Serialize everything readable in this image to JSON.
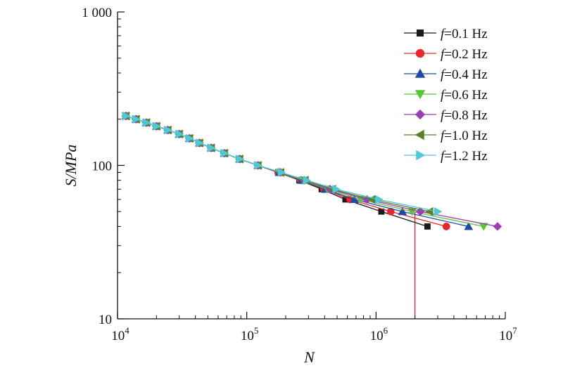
{
  "chart_data": {
    "type": "line",
    "title": "",
    "xlabel": "N",
    "ylabel": "S/MPa",
    "x_scale": "log",
    "y_scale": "log",
    "xlim": [
      10000,
      10000000
    ],
    "ylim": [
      10,
      1000
    ],
    "x_ticks": [
      {
        "value": 10000,
        "base": "10",
        "exp": "4"
      },
      {
        "value": 100000,
        "base": "10",
        "exp": "5"
      },
      {
        "value": 1000000,
        "base": "10",
        "exp": "6"
      },
      {
        "value": 10000000,
        "base": "10",
        "exp": "7"
      }
    ],
    "y_ticks": [
      {
        "value": 10,
        "label": "10"
      },
      {
        "value": 100,
        "label": "100"
      },
      {
        "value": 1000,
        "label": "1 000"
      }
    ],
    "grid": false,
    "legend_position": "top-right",
    "reference_line": {
      "x": 2000000,
      "y_from": 10,
      "y_to": 50,
      "color": "#d62728"
    },
    "series": [
      {
        "name": "f=0.1 Hz",
        "prefix": "f",
        "suffix": "=0.1 Hz",
        "color": "#1a1a1a",
        "marker": "square",
        "points": [
          [
            11600,
            210
          ],
          [
            13900,
            200
          ],
          [
            16700,
            190
          ],
          [
            20000,
            180
          ],
          [
            24500,
            170
          ],
          [
            30000,
            160
          ],
          [
            36000,
            150
          ],
          [
            43000,
            140
          ],
          [
            53000,
            130
          ],
          [
            67000,
            120
          ],
          [
            88000,
            110
          ],
          [
            122000,
            100
          ],
          [
            175000,
            90
          ],
          [
            255000,
            80
          ],
          [
            380000,
            70
          ],
          [
            580000,
            60
          ],
          [
            1100000,
            50
          ],
          [
            2500000,
            40
          ]
        ]
      },
      {
        "name": "f=0.2 Hz",
        "prefix": "f",
        "suffix": "=0.2 Hz",
        "color": "#e8262b",
        "marker": "circle",
        "points": [
          [
            11600,
            210
          ],
          [
            13900,
            200
          ],
          [
            16700,
            190
          ],
          [
            20000,
            180
          ],
          [
            24500,
            170
          ],
          [
            30000,
            160
          ],
          [
            36000,
            150
          ],
          [
            43000,
            140
          ],
          [
            53000,
            130
          ],
          [
            67000,
            120
          ],
          [
            88000,
            110
          ],
          [
            122000,
            100
          ],
          [
            175000,
            90
          ],
          [
            260000,
            80
          ],
          [
            395000,
            70
          ],
          [
            630000,
            60
          ],
          [
            1300000,
            50
          ],
          [
            3500000,
            40
          ]
        ]
      },
      {
        "name": "f=0.4 Hz",
        "prefix": "f",
        "suffix": "=0.4 Hz",
        "color": "#1f4aa8",
        "marker": "triangle-up",
        "points": [
          [
            11600,
            210
          ],
          [
            13900,
            200
          ],
          [
            16700,
            190
          ],
          [
            20000,
            180
          ],
          [
            24500,
            170
          ],
          [
            30000,
            160
          ],
          [
            36000,
            150
          ],
          [
            43000,
            140
          ],
          [
            53000,
            130
          ],
          [
            67000,
            120
          ],
          [
            88000,
            110
          ],
          [
            122000,
            100
          ],
          [
            178000,
            90
          ],
          [
            265000,
            80
          ],
          [
            405000,
            70
          ],
          [
            680000,
            60
          ],
          [
            1600000,
            50
          ],
          [
            5200000,
            40
          ]
        ]
      },
      {
        "name": "f=0.6 Hz",
        "prefix": "f",
        "suffix": "=0.6 Hz",
        "color": "#5cc43a",
        "marker": "triangle-down",
        "points": [
          [
            11600,
            210
          ],
          [
            13900,
            200
          ],
          [
            16700,
            190
          ],
          [
            20000,
            180
          ],
          [
            24500,
            170
          ],
          [
            30000,
            160
          ],
          [
            36000,
            150
          ],
          [
            43000,
            140
          ],
          [
            53000,
            130
          ],
          [
            67000,
            120
          ],
          [
            88000,
            110
          ],
          [
            122000,
            100
          ],
          [
            180000,
            90
          ],
          [
            272000,
            80
          ],
          [
            420000,
            70
          ],
          [
            760000,
            60
          ],
          [
            1900000,
            50
          ],
          [
            6800000,
            40
          ]
        ]
      },
      {
        "name": "f=0.8 Hz",
        "prefix": "f",
        "suffix": "=0.8 Hz",
        "color": "#9b3fb5",
        "marker": "diamond",
        "points": [
          [
            11600,
            210
          ],
          [
            13900,
            200
          ],
          [
            16700,
            190
          ],
          [
            20000,
            180
          ],
          [
            24500,
            170
          ],
          [
            30000,
            160
          ],
          [
            36000,
            150
          ],
          [
            43000,
            140
          ],
          [
            53000,
            130
          ],
          [
            67000,
            120
          ],
          [
            88000,
            110
          ],
          [
            122000,
            100
          ],
          [
            182000,
            90
          ],
          [
            278000,
            80
          ],
          [
            440000,
            70
          ],
          [
            850000,
            60
          ],
          [
            2200000,
            50
          ],
          [
            8700000,
            40
          ]
        ]
      },
      {
        "name": "f=1.0 Hz",
        "prefix": "f",
        "suffix": "=1.0 Hz",
        "color": "#5e7d2a",
        "marker": "triangle-left",
        "points": [
          [
            11600,
            210
          ],
          [
            13900,
            200
          ],
          [
            16700,
            190
          ],
          [
            20000,
            180
          ],
          [
            24500,
            170
          ],
          [
            30000,
            160
          ],
          [
            36000,
            150
          ],
          [
            43000,
            140
          ],
          [
            53000,
            130
          ],
          [
            67000,
            120
          ],
          [
            88000,
            110
          ],
          [
            122000,
            100
          ],
          [
            183000,
            90
          ],
          [
            283000,
            80
          ],
          [
            460000,
            70
          ],
          [
            930000,
            60
          ],
          [
            2600000,
            50
          ]
        ]
      },
      {
        "name": "f=1.2 Hz",
        "prefix": "f",
        "suffix": "=1.2 Hz",
        "color": "#4fc8d8",
        "marker": "triangle-right",
        "points": [
          [
            11600,
            210
          ],
          [
            13900,
            200
          ],
          [
            16700,
            190
          ],
          [
            20000,
            180
          ],
          [
            24500,
            170
          ],
          [
            30000,
            160
          ],
          [
            36000,
            150
          ],
          [
            43000,
            140
          ],
          [
            53000,
            130
          ],
          [
            67000,
            120
          ],
          [
            88000,
            110
          ],
          [
            122000,
            100
          ],
          [
            185000,
            90
          ],
          [
            290000,
            80
          ],
          [
            490000,
            70
          ],
          [
            1050000,
            60
          ],
          [
            3000000,
            50
          ]
        ]
      }
    ]
  }
}
